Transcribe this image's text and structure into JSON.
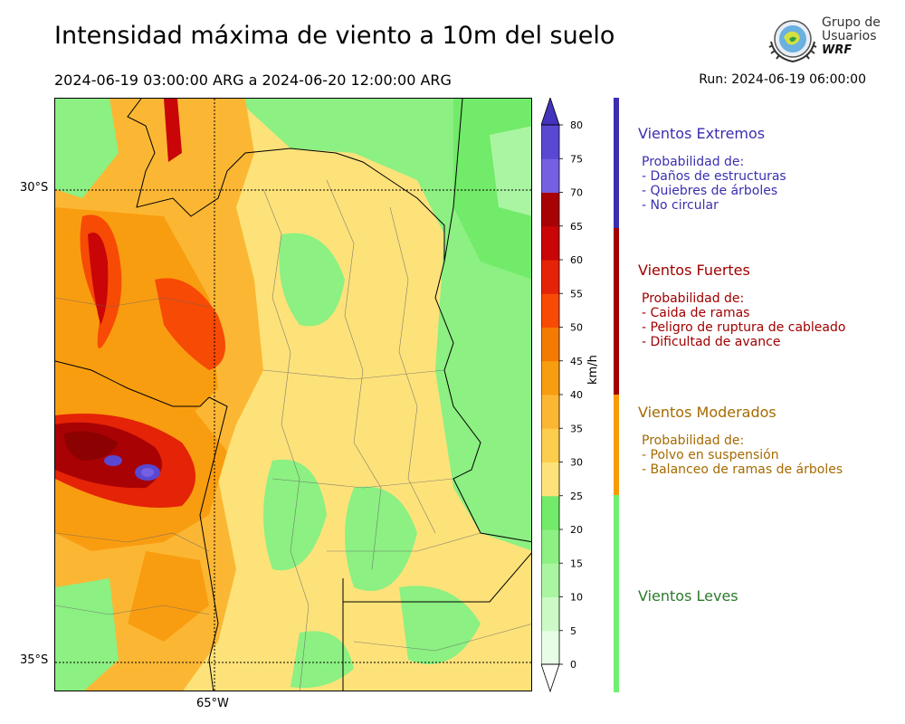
{
  "header": {
    "title": "Intensidad máxima de viento a 10m del suelo",
    "period": "2024-06-19 03:00:00 ARG  a  2024-06-20 12:00:00 ARG",
    "run": "Run: 2024-06-19 06:00:00"
  },
  "logo": {
    "line1": "Grupo de",
    "line2": "Usuarios",
    "line3": "WRF"
  },
  "map": {
    "lat_labels": [
      "30°S",
      "35°S"
    ],
    "lon_labels": [
      "65°W"
    ]
  },
  "colorbar": {
    "unit": "km/h",
    "ticks": [
      "0",
      "5",
      "10",
      "15",
      "20",
      "25",
      "30",
      "35",
      "40",
      "45",
      "50",
      "55",
      "60",
      "65",
      "70",
      "75",
      "80"
    ],
    "colors": [
      "#e8fde6",
      "#cbfac6",
      "#aaf5a2",
      "#8cf082",
      "#72ea6a",
      "#fde27a",
      "#fdcd4d",
      "#fbb734",
      "#f99d10",
      "#f57a02",
      "#f74a04",
      "#e42307",
      "#c90508",
      "#a90205",
      "#7460e0",
      "#5848d2",
      "#4333bd"
    ]
  },
  "legend": [
    {
      "title": "Vientos Extremos",
      "prob": "Probabilidad de:",
      "items": [
        "- Daños de estructuras",
        "- Quiebres de árboles",
        "- No circular"
      ],
      "color": "#3a2fb0",
      "text_color": "#3a2fb0"
    },
    {
      "title": "Vientos Fuertes",
      "prob": "Probabilidad de:",
      "items": [
        "- Caida de ramas",
        "- Peligro de ruptura de cableado",
        "- Dificultad de avance"
      ],
      "color": "#a00000",
      "text_color": "#a00000"
    },
    {
      "title": "Vientos Moderados",
      "prob": "Probabilidad de:",
      "items": [
        "- Polvo en suspensión",
        "- Balanceo de ramas de árboles"
      ],
      "color": "#fa9a00",
      "text_color": "#a56a00"
    },
    {
      "title": "Vientos Leves",
      "prob": "",
      "items": [],
      "color": "#70f070",
      "text_color": "#2c7a2c"
    }
  ]
}
